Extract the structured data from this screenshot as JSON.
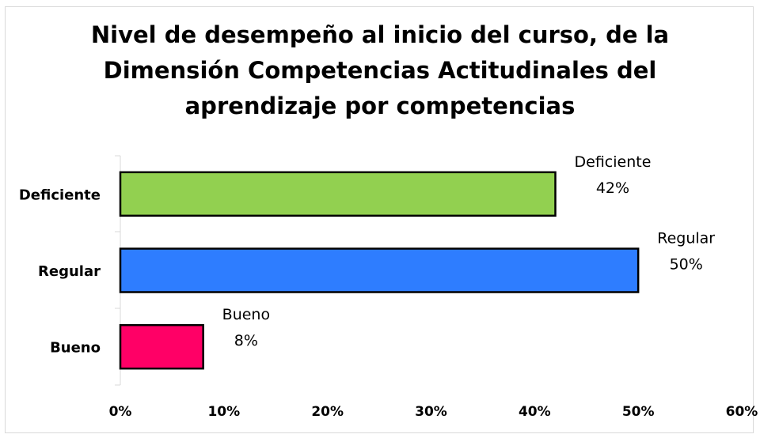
{
  "chart_data": {
    "type": "barh",
    "title": "Nivel de desempeño al inicio del curso, de la Dimensión Competencias Actitudinales del aprendizaje por competencias",
    "categories": [
      "Deficiente",
      "Regular",
      "Bueno"
    ],
    "values": [
      42,
      50,
      8
    ],
    "value_labels": [
      "42%",
      "50%",
      "8%"
    ],
    "colors": [
      "#92d050",
      "#2e7dff",
      "#ff0066"
    ],
    "xlim": [
      0,
      60
    ],
    "xticks": [
      {
        "value": 0,
        "label": "0%"
      },
      {
        "value": 10,
        "label": "10%"
      },
      {
        "value": 20,
        "label": "20%"
      },
      {
        "value": 30,
        "label": "30%"
      },
      {
        "value": 40,
        "label": "40%"
      },
      {
        "value": 50,
        "label": "50%"
      },
      {
        "value": 60,
        "label": "60%"
      }
    ],
    "grid": false
  }
}
